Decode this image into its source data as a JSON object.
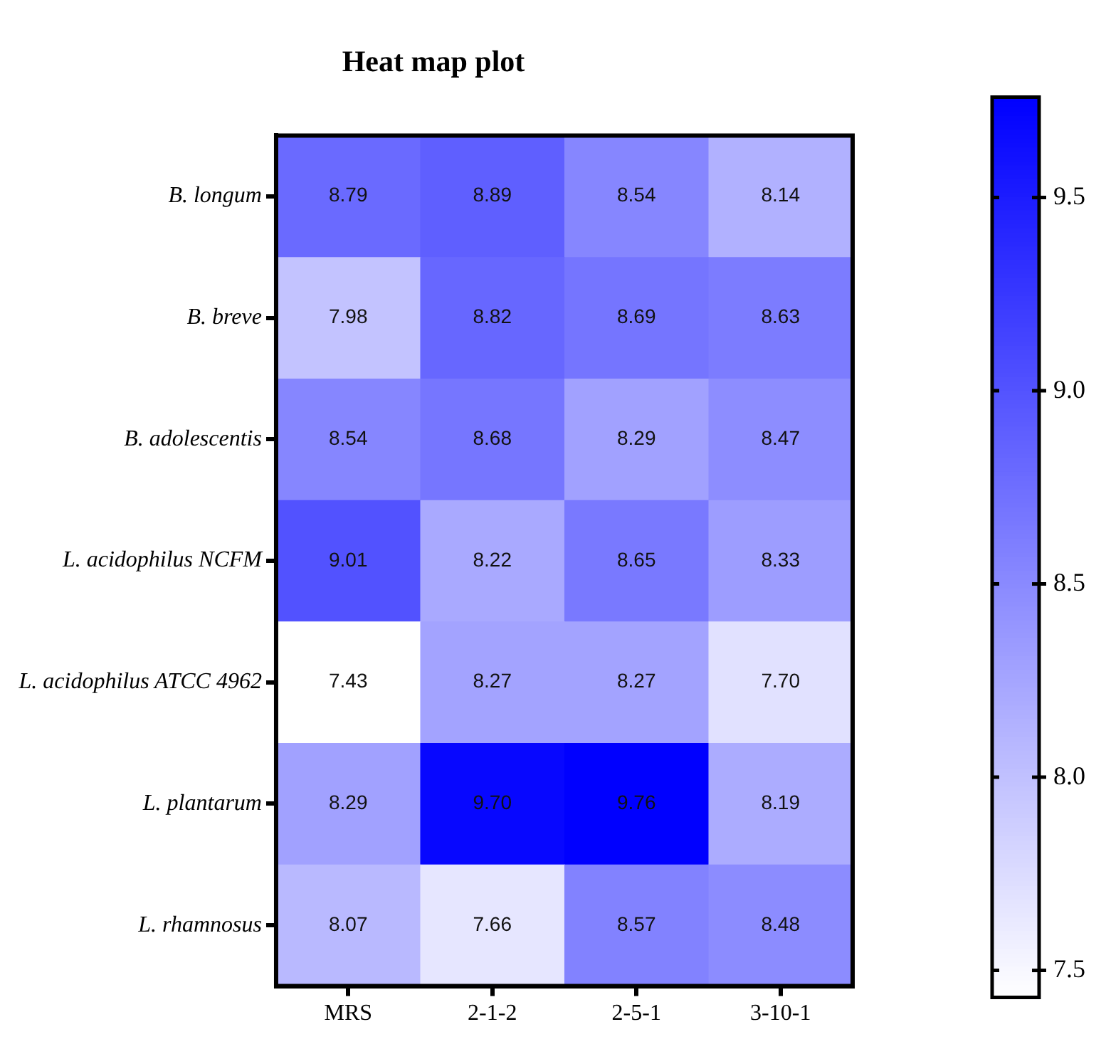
{
  "chart_data": {
    "type": "heatmap",
    "title": "Heat map plot",
    "categories": [
      "MRS",
      "2-1-2",
      "2-5-1",
      "3-10-1"
    ],
    "y_categories": [
      "B. longum",
      "B. breve",
      "B. adolescentis",
      "L. acidophilus NCFM",
      "L. acidophilus ATCC 4962",
      "L. plantarum",
      "L. rhamnosus"
    ],
    "cells": [
      [
        8.79,
        8.89,
        8.54,
        8.14
      ],
      [
        7.98,
        8.82,
        8.69,
        8.63
      ],
      [
        8.54,
        8.68,
        8.29,
        8.47
      ],
      [
        9.01,
        8.22,
        8.65,
        8.33
      ],
      [
        7.43,
        8.27,
        8.27,
        7.7
      ],
      [
        8.29,
        9.7,
        9.76,
        8.19
      ],
      [
        8.07,
        7.66,
        8.57,
        8.48
      ]
    ],
    "cell_labels": [
      [
        "8.79",
        "8.89",
        "8.54",
        "8.14"
      ],
      [
        "7.98",
        "8.82",
        "8.69",
        "8.63"
      ],
      [
        "8.54",
        "8.68",
        "8.29",
        "8.47"
      ],
      [
        "9.01",
        "8.22",
        "8.65",
        "8.33"
      ],
      [
        "7.43",
        "8.27",
        "8.27",
        "7.70"
      ],
      [
        "8.29",
        "9.70",
        "9.76",
        "8.19"
      ],
      [
        "8.07",
        "7.66",
        "8.57",
        "8.48"
      ]
    ],
    "clim": [
      7.43,
      9.76
    ],
    "cticks": [
      {
        "value": 7.5,
        "label": "7.5"
      },
      {
        "value": 8.0,
        "label": "8.0"
      },
      {
        "value": 8.5,
        "label": "8.5"
      },
      {
        "value": 9.0,
        "label": "9.0"
      },
      {
        "value": 9.5,
        "label": "9.5"
      }
    ]
  }
}
